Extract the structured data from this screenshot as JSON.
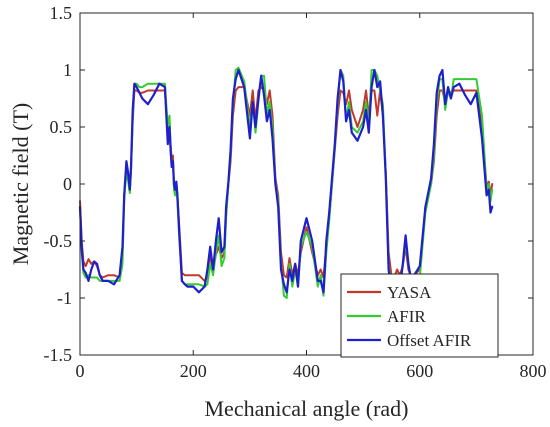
{
  "chart_data": {
    "type": "line",
    "xlabel": "Mechanical angle (rad)",
    "ylabel": "Magnetic field (T)",
    "xlim": [
      0,
      800
    ],
    "ylim": [
      -1.5,
      1.5
    ],
    "xticks": [
      0,
      200,
      400,
      600,
      800
    ],
    "yticks": [
      -1.5,
      -1,
      -0.5,
      0,
      0.5,
      1,
      1.5
    ],
    "xtick_labels": [
      "0",
      "200",
      "400",
      "600",
      "800"
    ],
    "ytick_labels": [
      "-1.5",
      "-1",
      "-0.5",
      "0",
      "0.5",
      "1",
      "1.5"
    ],
    "grid": false,
    "legend_position": "bottom-right",
    "series": [
      {
        "name": "YASA",
        "color": "#c0392b",
        "x": [
          0,
          3,
          6,
          10,
          15,
          20,
          25,
          30,
          35,
          40,
          50,
          60,
          70,
          75,
          78,
          80,
          82,
          85,
          88,
          90,
          93,
          96,
          100,
          105,
          110,
          120,
          130,
          140,
          150,
          155,
          158,
          160,
          162,
          164,
          166,
          168,
          170,
          172,
          175,
          180,
          185,
          190,
          200,
          210,
          220,
          225,
          230,
          235,
          240,
          245,
          250,
          255,
          258,
          262,
          266,
          270,
          275,
          280,
          290,
          300,
          305,
          310,
          315,
          320,
          325,
          330,
          335,
          340,
          345,
          350,
          355,
          360,
          365,
          370,
          375,
          380,
          385,
          390,
          400,
          410,
          420,
          425,
          430,
          435,
          440,
          445,
          450,
          455,
          460,
          465,
          470,
          475,
          480,
          490,
          500,
          505,
          510,
          515,
          520,
          525,
          530,
          535,
          540,
          545,
          550,
          555,
          560,
          565,
          570,
          575,
          580,
          585,
          590,
          600,
          610,
          620,
          625,
          630,
          635,
          640,
          645,
          650,
          655,
          660,
          670,
          680,
          690,
          700,
          710,
          718,
          722,
          725,
          728
        ],
        "y": [
          -0.15,
          -0.5,
          -0.68,
          -0.72,
          -0.66,
          -0.7,
          -0.68,
          -0.72,
          -0.8,
          -0.82,
          -0.8,
          -0.8,
          -0.82,
          -0.6,
          -0.1,
          0.02,
          0.1,
          0.05,
          -0.05,
          0.12,
          0.55,
          0.82,
          0.82,
          0.8,
          0.8,
          0.82,
          0.82,
          0.82,
          0.82,
          0.45,
          0.55,
          0.35,
          0.2,
          0.25,
          0.0,
          -0.05,
          0.02,
          -0.1,
          -0.35,
          -0.78,
          -0.8,
          -0.8,
          -0.8,
          -0.8,
          -0.85,
          -0.82,
          -0.62,
          -0.75,
          -0.62,
          -0.55,
          -0.65,
          -0.6,
          -0.25,
          0.0,
          0.2,
          0.6,
          0.82,
          0.85,
          0.85,
          0.6,
          0.82,
          0.55,
          0.82,
          0.85,
          0.82,
          0.7,
          0.82,
          0.6,
          0.05,
          -0.1,
          -0.6,
          -0.8,
          -0.82,
          -0.65,
          -0.8,
          -0.7,
          -0.8,
          -0.6,
          -0.38,
          -0.6,
          -0.8,
          -0.75,
          -0.82,
          -0.55,
          -0.3,
          0.0,
          0.3,
          0.6,
          0.82,
          0.8,
          0.7,
          0.82,
          0.65,
          0.5,
          0.65,
          0.82,
          0.6,
          0.82,
          0.82,
          0.6,
          0.82,
          0.6,
          0.1,
          -0.6,
          -0.8,
          -0.82,
          -0.75,
          -0.8,
          -0.72,
          -0.55,
          -0.75,
          -0.82,
          -0.8,
          -0.75,
          -0.2,
          0.0,
          0.2,
          0.6,
          0.82,
          0.82,
          0.72,
          0.82,
          0.8,
          0.82,
          0.82,
          0.82,
          0.82,
          0.82,
          0.5,
          -0.02,
          0.02,
          -0.1,
          0.0
        ]
      },
      {
        "name": "AFIR",
        "color": "#33cc33",
        "x": [
          0,
          3,
          6,
          10,
          15,
          20,
          25,
          30,
          35,
          40,
          50,
          60,
          70,
          75,
          78,
          80,
          82,
          85,
          88,
          90,
          93,
          96,
          100,
          105,
          110,
          120,
          130,
          140,
          150,
          155,
          158,
          160,
          162,
          164,
          166,
          168,
          170,
          172,
          175,
          180,
          185,
          190,
          200,
          210,
          220,
          225,
          230,
          235,
          240,
          245,
          250,
          255,
          258,
          262,
          266,
          270,
          275,
          280,
          290,
          300,
          305,
          310,
          315,
          320,
          325,
          330,
          335,
          340,
          345,
          350,
          355,
          360,
          365,
          370,
          375,
          380,
          385,
          390,
          400,
          410,
          420,
          425,
          430,
          435,
          440,
          445,
          450,
          455,
          460,
          465,
          470,
          475,
          480,
          490,
          500,
          505,
          510,
          515,
          520,
          525,
          530,
          535,
          540,
          545,
          550,
          555,
          560,
          565,
          570,
          575,
          580,
          585,
          590,
          600,
          610,
          620,
          625,
          630,
          635,
          640,
          645,
          650,
          655,
          660,
          670,
          680,
          690,
          700,
          710,
          718,
          722,
          725,
          728
        ],
        "y": [
          -0.2,
          -0.6,
          -0.78,
          -0.82,
          -0.8,
          -0.82,
          -0.82,
          -0.82,
          -0.85,
          -0.85,
          -0.85,
          -0.85,
          -0.85,
          -0.7,
          -0.15,
          0.0,
          0.08,
          0.03,
          -0.08,
          0.1,
          0.6,
          0.88,
          0.88,
          0.85,
          0.85,
          0.88,
          0.88,
          0.88,
          0.88,
          0.5,
          0.6,
          0.3,
          0.15,
          0.2,
          -0.05,
          -0.1,
          0.0,
          -0.15,
          -0.45,
          -0.85,
          -0.88,
          -0.88,
          -0.88,
          -0.88,
          -0.9,
          -0.88,
          -0.7,
          -0.8,
          -0.6,
          -0.45,
          -0.72,
          -0.65,
          -0.3,
          0.0,
          0.25,
          0.7,
          1.0,
          1.02,
          0.9,
          0.5,
          0.72,
          0.45,
          0.72,
          0.95,
          0.95,
          0.62,
          0.72,
          0.5,
          0.02,
          -0.15,
          -0.7,
          -0.98,
          -1.0,
          -0.7,
          -0.9,
          -0.75,
          -0.9,
          -0.55,
          -0.42,
          -0.55,
          -0.9,
          -0.8,
          -0.98,
          -0.6,
          -0.32,
          0.0,
          0.32,
          0.7,
          1.0,
          0.95,
          0.55,
          0.72,
          0.5,
          0.45,
          0.55,
          0.72,
          0.5,
          1.0,
          1.0,
          0.95,
          0.82,
          0.7,
          0.08,
          -0.7,
          -1.0,
          -1.0,
          -0.8,
          -0.9,
          -0.72,
          -0.5,
          -0.7,
          -0.85,
          -0.85,
          -0.82,
          -0.25,
          0.0,
          0.25,
          0.7,
          0.92,
          0.92,
          0.65,
          0.82,
          0.75,
          0.92,
          0.92,
          0.92,
          0.92,
          0.92,
          0.6,
          -0.05,
          0.0,
          -0.15,
          -0.05
        ]
      },
      {
        "name": "Offset AFIR",
        "color": "#1f1fcc",
        "x": [
          0,
          3,
          6,
          10,
          15,
          20,
          25,
          30,
          35,
          40,
          50,
          60,
          70,
          75,
          78,
          80,
          82,
          85,
          88,
          90,
          93,
          96,
          100,
          105,
          110,
          120,
          130,
          140,
          150,
          155,
          158,
          160,
          162,
          164,
          166,
          168,
          170,
          172,
          175,
          180,
          185,
          190,
          200,
          210,
          220,
          225,
          230,
          235,
          240,
          245,
          250,
          255,
          258,
          262,
          266,
          270,
          275,
          280,
          290,
          300,
          305,
          310,
          315,
          320,
          325,
          330,
          335,
          340,
          345,
          350,
          355,
          360,
          365,
          370,
          375,
          380,
          385,
          390,
          400,
          410,
          420,
          425,
          430,
          435,
          440,
          445,
          450,
          455,
          460,
          465,
          470,
          475,
          480,
          490,
          500,
          505,
          510,
          515,
          520,
          525,
          530,
          535,
          540,
          545,
          550,
          555,
          560,
          565,
          570,
          575,
          580,
          585,
          590,
          600,
          610,
          620,
          625,
          630,
          635,
          640,
          645,
          650,
          655,
          660,
          670,
          680,
          690,
          700,
          710,
          718,
          722,
          725,
          728
        ],
        "y": [
          -0.2,
          -0.55,
          -0.75,
          -0.78,
          -0.85,
          -0.75,
          -0.68,
          -0.7,
          -0.8,
          -0.85,
          -0.85,
          -0.88,
          -0.8,
          -0.55,
          -0.1,
          0.05,
          0.2,
          0.1,
          -0.05,
          0.15,
          0.65,
          0.88,
          0.85,
          0.8,
          0.75,
          0.7,
          0.78,
          0.88,
          0.85,
          0.35,
          0.5,
          0.3,
          0.15,
          0.2,
          0.0,
          -0.05,
          0.02,
          -0.1,
          -0.4,
          -0.85,
          -0.88,
          -0.9,
          -0.9,
          -0.95,
          -0.9,
          -0.75,
          -0.55,
          -0.75,
          -0.5,
          -0.3,
          -0.6,
          -0.55,
          -0.2,
          0.02,
          0.3,
          0.75,
          0.92,
          1.0,
          0.85,
          0.4,
          0.72,
          0.5,
          0.75,
          0.95,
          0.78,
          0.55,
          0.65,
          0.4,
          0.0,
          -0.2,
          -0.75,
          -0.88,
          -0.95,
          -0.75,
          -0.85,
          -0.7,
          -0.9,
          -0.5,
          -0.3,
          -0.5,
          -0.85,
          -0.85,
          -0.95,
          -0.5,
          -0.25,
          0.05,
          0.35,
          0.75,
          1.0,
          0.9,
          0.55,
          0.65,
          0.45,
          0.38,
          0.5,
          0.65,
          0.45,
          0.85,
          1.0,
          0.85,
          0.9,
          0.6,
          0.05,
          -0.75,
          -0.95,
          -0.98,
          -0.85,
          -0.9,
          -0.7,
          -0.45,
          -0.7,
          -0.85,
          -0.8,
          -0.72,
          -0.2,
          0.05,
          0.35,
          0.8,
          0.95,
          1.0,
          0.7,
          0.85,
          0.75,
          0.85,
          0.88,
          0.78,
          0.7,
          0.8,
          0.4,
          -0.1,
          -0.05,
          -0.25,
          -0.2
        ]
      }
    ]
  }
}
